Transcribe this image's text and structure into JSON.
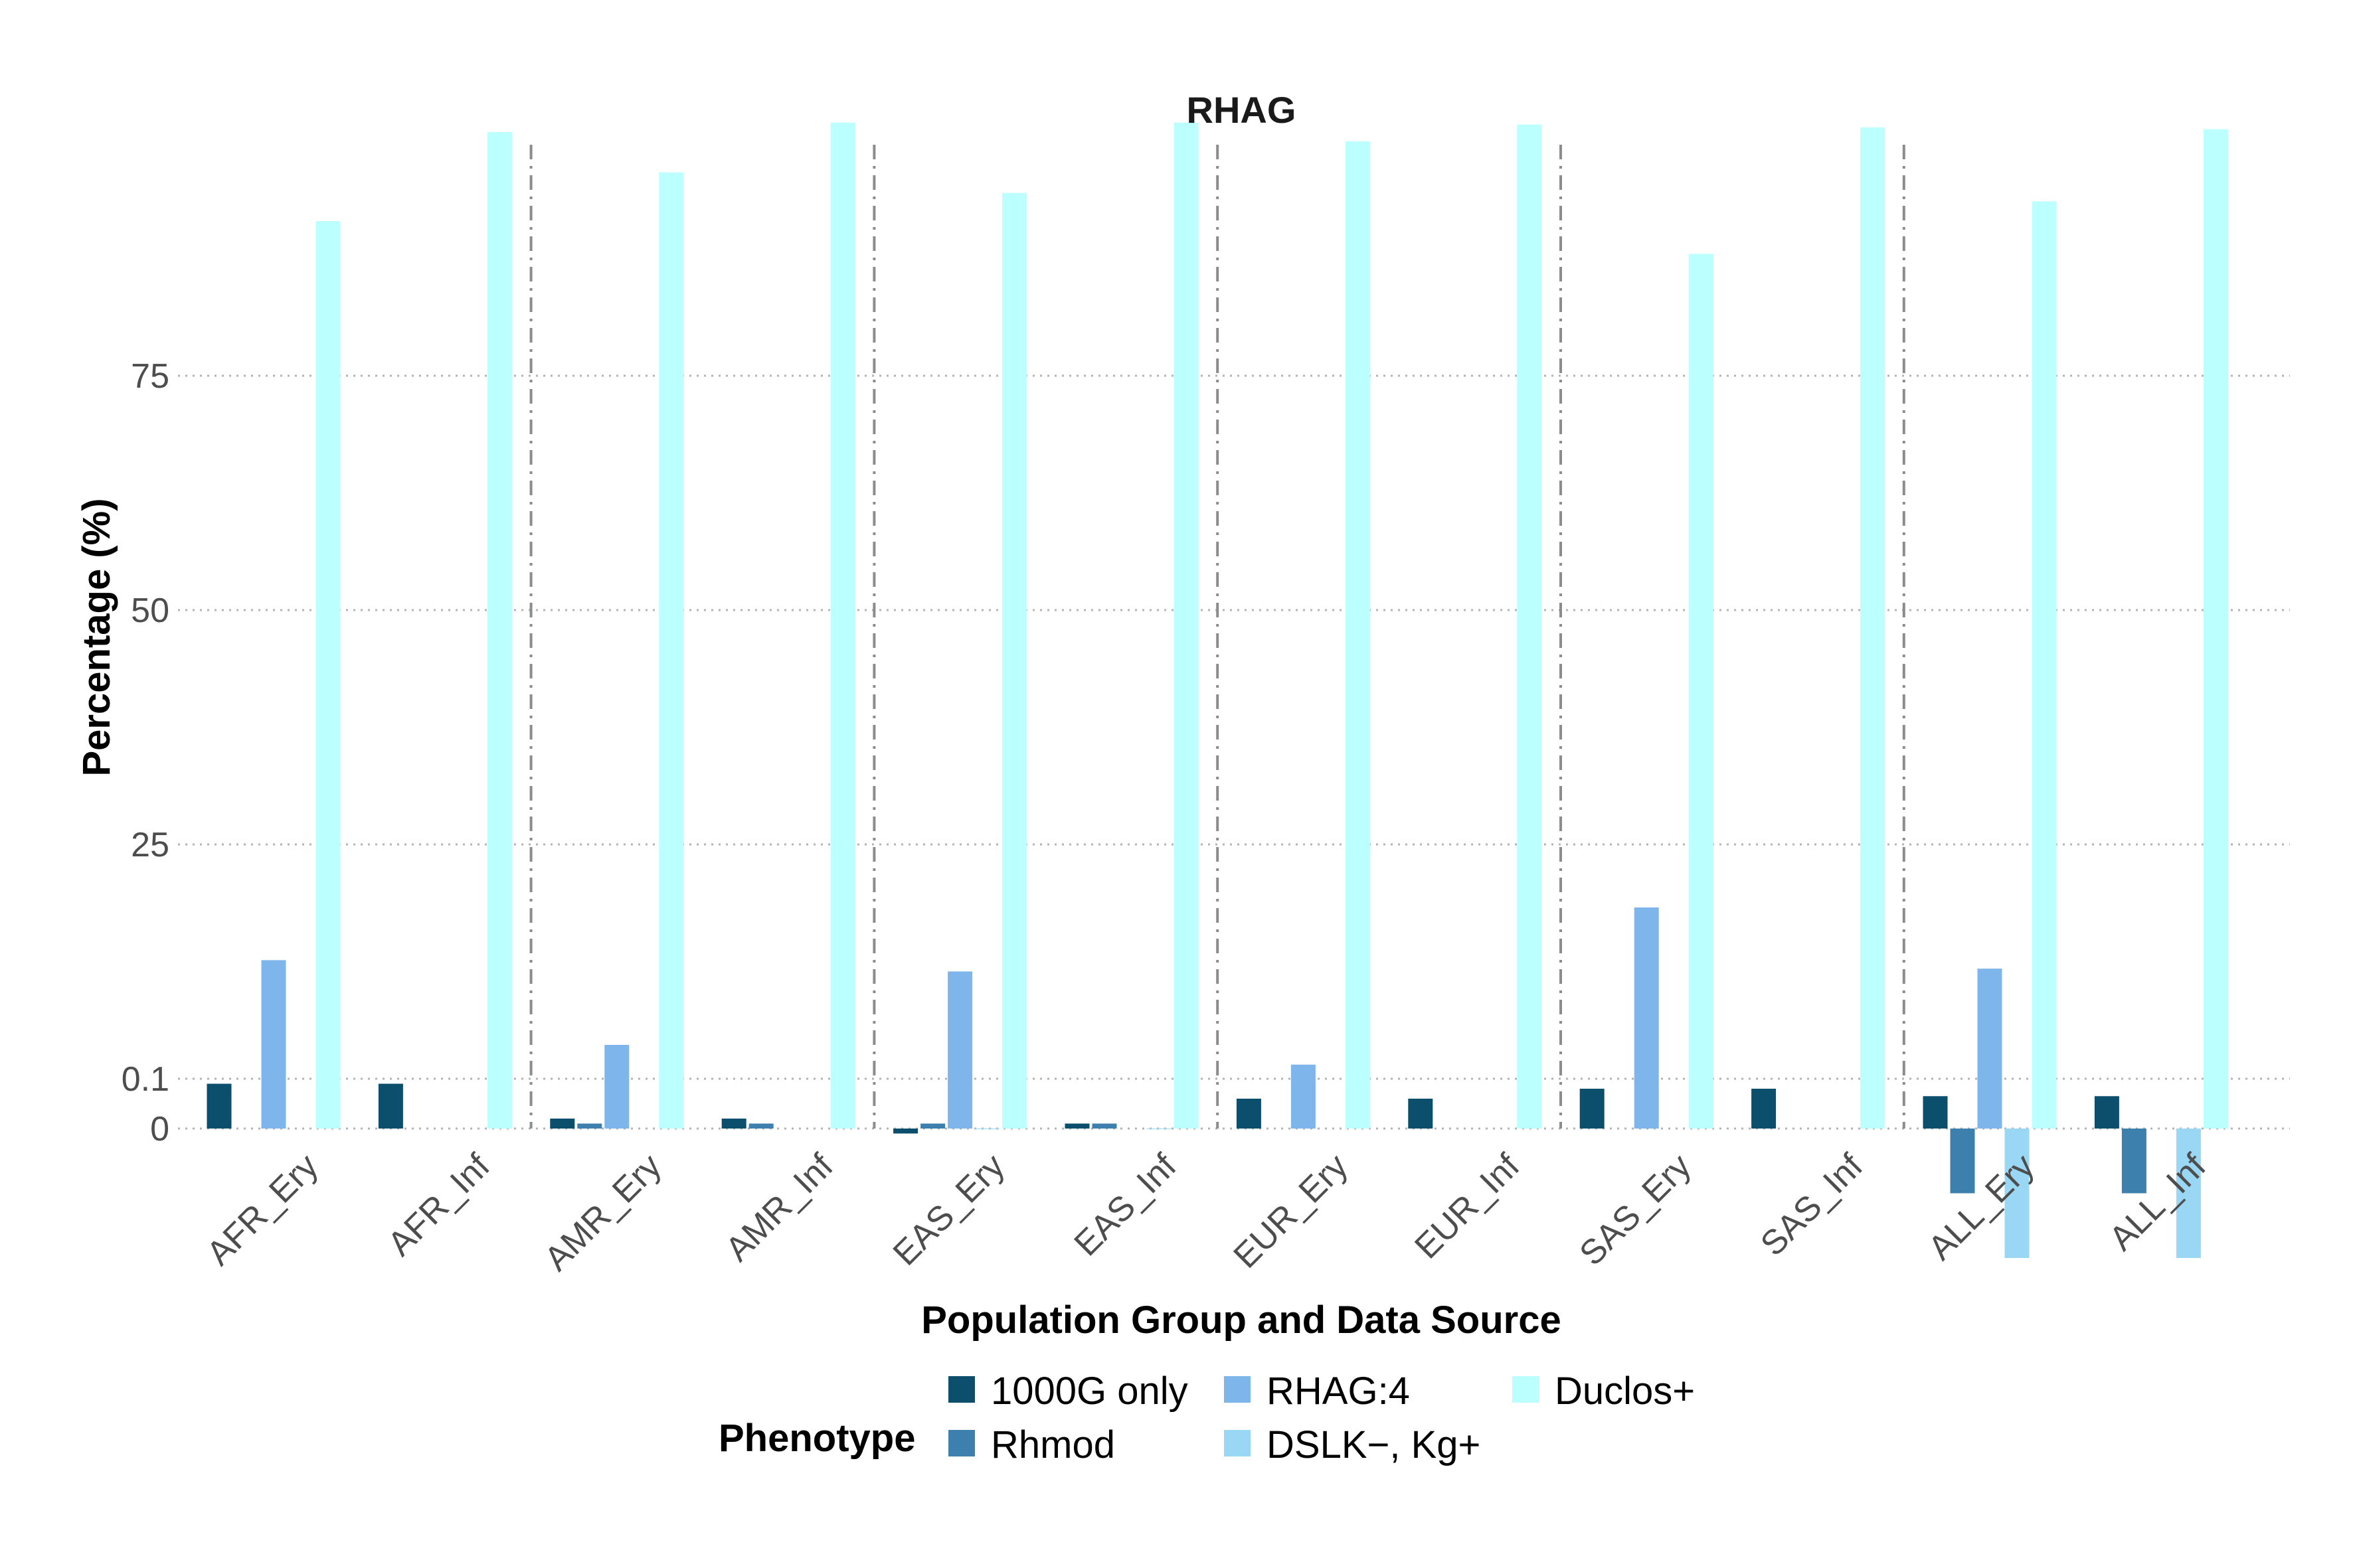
{
  "chart_data": {
    "type": "bar",
    "title": "RHAG",
    "xlabel": "Population Group and Data Source",
    "ylabel": "Percentage (%)",
    "categories": [
      "AFR_Ery",
      "AFR_Inf",
      "AMR_Ery",
      "AMR_Inf",
      "EAS_Ery",
      "EAS_Inf",
      "EUR_Ery",
      "EUR_Inf",
      "SAS_Ery",
      "SAS_Inf",
      "ALL_Ery",
      "ALL_Inf"
    ],
    "y_ticks": [
      {
        "label": "0",
        "value": 0
      },
      {
        "label": "0.1",
        "value": 0.1
      },
      {
        "label": "25",
        "value": 25
      },
      {
        "label": "50",
        "value": 50
      },
      {
        "label": "75",
        "value": 75
      }
    ],
    "y_scale_breaks": [
      0,
      0.1,
      25,
      50,
      75
    ],
    "ylim_top": 105,
    "grid": "horizontal dotted",
    "group_separators": "dash-dot lines between population groups",
    "legend": {
      "title": "Phenotype",
      "position": "bottom"
    },
    "series": [
      {
        "name": "1000G only",
        "color": "#0b4f6c",
        "values": [
          0.09,
          0.09,
          0.02,
          0.02,
          -0.01,
          0.01,
          0.06,
          0.06,
          0.08,
          0.08,
          0.065,
          0.065
        ]
      },
      {
        "name": "Rhmod",
        "color": "#3d7fad",
        "values": [
          null,
          null,
          0.01,
          0.01,
          0.01,
          0.01,
          null,
          null,
          null,
          null,
          -0.13,
          -0.13
        ]
      },
      {
        "name": "RHAG:4",
        "color": "#7eb5ea",
        "values": [
          12.7,
          null,
          3.7,
          null,
          11.5,
          null,
          1.6,
          null,
          18.3,
          null,
          11.8,
          null
        ]
      },
      {
        "name": "DSLK−, Kg+",
        "color": "#9ad7f4",
        "values": [
          null,
          null,
          null,
          null,
          0.0,
          0.0,
          null,
          null,
          null,
          null,
          -0.26,
          -0.26
        ]
      },
      {
        "name": "Duclos+",
        "color": "#bbffff",
        "values": [
          91.5,
          101.0,
          96.7,
          102.0,
          94.5,
          102.0,
          100.0,
          101.8,
          88.0,
          101.5,
          93.6,
          101.3
        ]
      }
    ]
  }
}
